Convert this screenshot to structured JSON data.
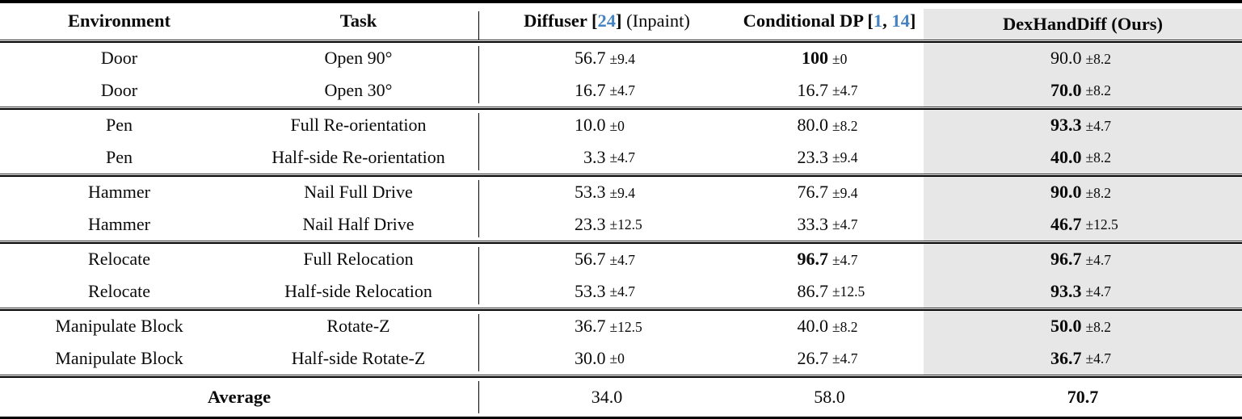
{
  "colors": {
    "citation_blue": "#4583c2",
    "highlight_gray": "#e7e7e7"
  },
  "header": {
    "environment": "Environment",
    "task": "Task",
    "diffuser": {
      "prefix": "Diffuser [",
      "cite": "24",
      "suffix": "]",
      "note": " (Inpaint)"
    },
    "conditional_dp": {
      "prefix": "Conditional DP [",
      "cite1": "1",
      "sep": ", ",
      "cite2": "14",
      "suffix": "]"
    },
    "ours": "DexHandDiff (Ours)"
  },
  "sections": [
    {
      "rows": [
        {
          "env": "Door",
          "task": "Open 90°",
          "diffuser": {
            "val": "56.7",
            "err": "±9.4",
            "bold": false
          },
          "cdp": {
            "val": "100",
            "err": "±0",
            "bold": true
          },
          "ours": {
            "val": "90.0",
            "err": "±8.2",
            "bold": false
          }
        },
        {
          "env": "Door",
          "task": "Open 30°",
          "diffuser": {
            "val": "16.7",
            "err": "±4.7",
            "bold": false
          },
          "cdp": {
            "val": "16.7",
            "err": "±4.7",
            "bold": false
          },
          "ours": {
            "val": "70.0",
            "err": "±8.2",
            "bold": true
          }
        }
      ]
    },
    {
      "rows": [
        {
          "env": "Pen",
          "task": "Full Re-orientation",
          "diffuser": {
            "val": "10.0",
            "err": "±0",
            "bold": false
          },
          "cdp": {
            "val": "80.0",
            "err": "±8.2",
            "bold": false
          },
          "ours": {
            "val": "93.3",
            "err": "±4.7",
            "bold": true
          }
        },
        {
          "env": "Pen",
          "task": "Half-side Re-orientation",
          "diffuser": {
            "val": "3.3",
            "err": "±4.7",
            "bold": false
          },
          "cdp": {
            "val": "23.3",
            "err": "±9.4",
            "bold": false
          },
          "ours": {
            "val": "40.0",
            "err": "±8.2",
            "bold": true
          }
        }
      ]
    },
    {
      "rows": [
        {
          "env": "Hammer",
          "task": "Nail Full Drive",
          "diffuser": {
            "val": "53.3",
            "err": "±9.4",
            "bold": false
          },
          "cdp": {
            "val": "76.7",
            "err": "±9.4",
            "bold": false
          },
          "ours": {
            "val": "90.0",
            "err": "±8.2",
            "bold": true
          }
        },
        {
          "env": "Hammer",
          "task": "Nail Half Drive",
          "diffuser": {
            "val": "23.3",
            "err": "±12.5",
            "bold": false
          },
          "cdp": {
            "val": "33.3",
            "err": "±4.7",
            "bold": false
          },
          "ours": {
            "val": "46.7",
            "err": "±12.5",
            "bold": true
          }
        }
      ]
    },
    {
      "rows": [
        {
          "env": "Relocate",
          "task": "Full Relocation",
          "diffuser": {
            "val": "56.7",
            "err": "±4.7",
            "bold": false
          },
          "cdp": {
            "val": "96.7",
            "err": "±4.7",
            "bold": true
          },
          "ours": {
            "val": "96.7",
            "err": "±4.7",
            "bold": true
          }
        },
        {
          "env": "Relocate",
          "task": "Half-side Relocation",
          "diffuser": {
            "val": "53.3",
            "err": "±4.7",
            "bold": false
          },
          "cdp": {
            "val": "86.7",
            "err": "±12.5",
            "bold": false
          },
          "ours": {
            "val": "93.3",
            "err": "±4.7",
            "bold": true
          }
        }
      ]
    },
    {
      "rows": [
        {
          "env": "Manipulate Block",
          "task": "Rotate-Z",
          "diffuser": {
            "val": "36.7",
            "err": "±12.5",
            "bold": false
          },
          "cdp": {
            "val": "40.0",
            "err": "±8.2",
            "bold": false
          },
          "ours": {
            "val": "50.0",
            "err": "±8.2",
            "bold": true
          }
        },
        {
          "env": "Manipulate Block",
          "task": "Half-side Rotate-Z",
          "diffuser": {
            "val": "30.0",
            "err": "±0",
            "bold": false
          },
          "cdp": {
            "val": "26.7",
            "err": "±4.7",
            "bold": false
          },
          "ours": {
            "val": "36.7",
            "err": "±4.7",
            "bold": true
          }
        }
      ]
    },
    {}
  ],
  "average": {
    "label": "Average",
    "diffuser": "34.0",
    "cdp": "58.0",
    "ours": "70.7"
  }
}
